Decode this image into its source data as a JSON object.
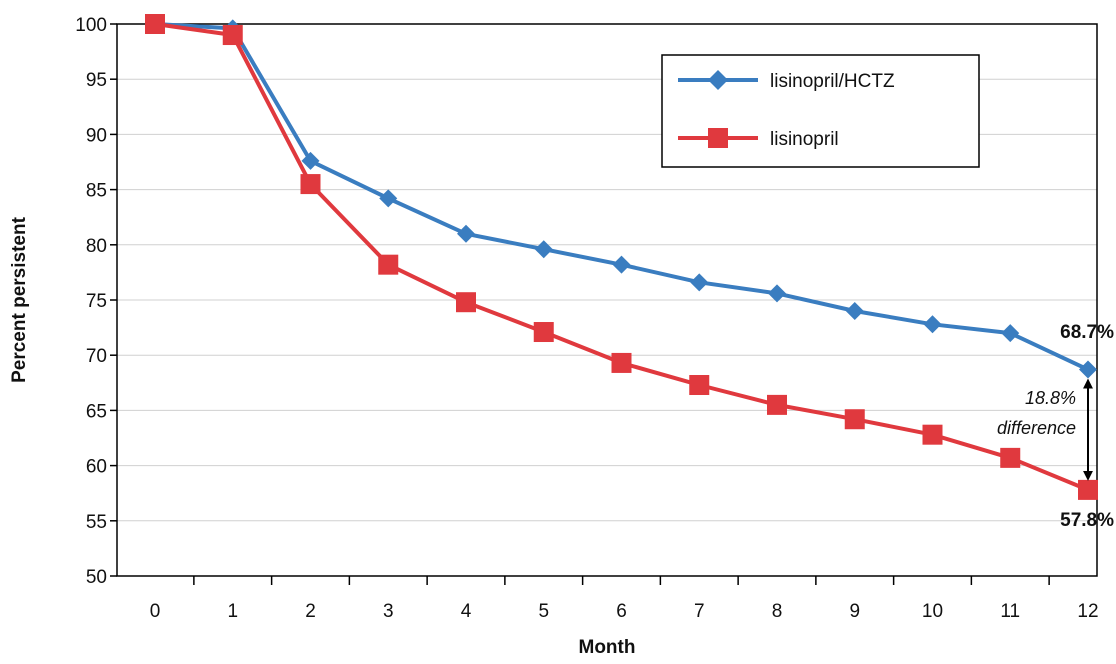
{
  "chart_data": {
    "type": "line",
    "xlabel": "Month",
    "ylabel": "Percent persistent",
    "x": [
      0,
      1,
      2,
      3,
      4,
      5,
      6,
      7,
      8,
      9,
      10,
      11,
      12
    ],
    "xlim": [
      0,
      12
    ],
    "ylim": [
      50,
      100
    ],
    "yticks": [
      50,
      55,
      60,
      65,
      70,
      75,
      80,
      85,
      90,
      95,
      100
    ],
    "grid": true,
    "legend_position": "top-right",
    "series": [
      {
        "name": "lisinopril/HCTZ",
        "color": "#3a7dc0",
        "marker": "diamond",
        "values": [
          100,
          99.6,
          87.6,
          84.2,
          81.0,
          79.6,
          78.2,
          76.6,
          75.6,
          74.0,
          72.8,
          72.0,
          68.7
        ]
      },
      {
        "name": "lisinopril",
        "color": "#e0393e",
        "marker": "square",
        "values": [
          100,
          99.0,
          85.5,
          78.2,
          74.8,
          72.1,
          69.3,
          67.3,
          65.5,
          64.2,
          62.8,
          60.7,
          57.8
        ]
      }
    ],
    "annotations": {
      "end_label_top": "68.7%",
      "end_label_bottom": "57.8%",
      "difference_line1": "18.8%",
      "difference_line2": "difference"
    }
  }
}
